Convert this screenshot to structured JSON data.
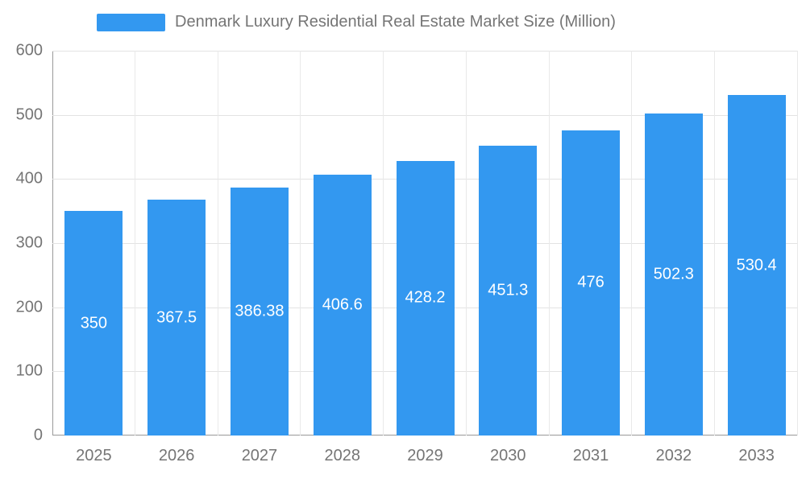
{
  "legend": {
    "title": "Denmark Luxury Residential Real Estate Market Size (Million)"
  },
  "colors": {
    "bar": "#3398f0",
    "bar_label_text": "#ffffff",
    "axis_text": "#757575",
    "axis_line": "#999999",
    "gridline": "#e3e3e3"
  },
  "chart_data": {
    "type": "bar",
    "title": "Denmark Luxury Residential Real Estate Market Size (Million)",
    "categories": [
      "2025",
      "2026",
      "2027",
      "2028",
      "2029",
      "2030",
      "2031",
      "2032",
      "2033"
    ],
    "values": [
      350,
      367.5,
      386.38,
      406.6,
      428.2,
      451.3,
      476,
      502.3,
      530.4
    ],
    "value_labels": [
      "350",
      "367.5",
      "386.38",
      "406.6",
      "428.2",
      "451.3",
      "476",
      "502.3",
      "530.4"
    ],
    "xlabel": "",
    "ylabel": "",
    "ylim": [
      0,
      600
    ],
    "yticks": [
      0,
      100,
      200,
      300,
      400,
      500,
      600
    ],
    "grid": true,
    "legend_position": "top"
  }
}
